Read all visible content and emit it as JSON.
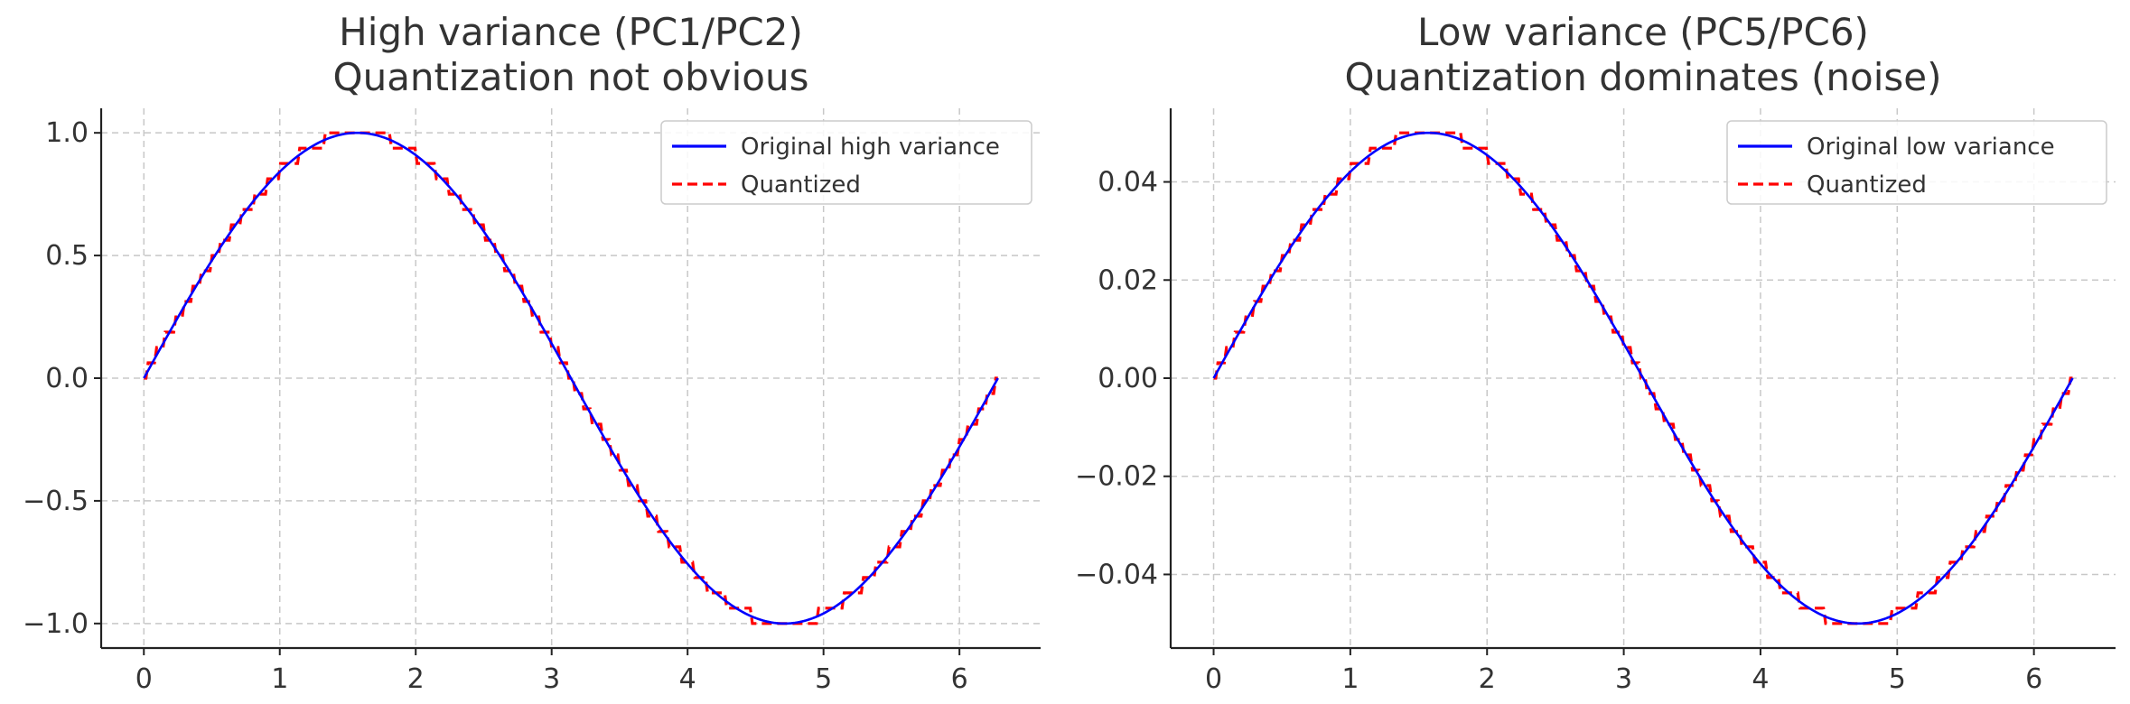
{
  "chart_data": [
    {
      "type": "line",
      "title": "High variance (PC1/PC2)",
      "subtitle": "Quantization not obvious",
      "xlabel": "",
      "ylabel": "",
      "xlim": [
        -0.314,
        6.597
      ],
      "ylim": [
        -1.1,
        1.1
      ],
      "xticks": [
        0,
        1,
        2,
        3,
        4,
        5,
        6
      ],
      "yticks": [
        -1.0,
        -0.5,
        0.0,
        0.5,
        1.0
      ],
      "xtick_labels": [
        "0",
        "1",
        "2",
        "3",
        "4",
        "5",
        "6"
      ],
      "ytick_labels": [
        "−1.0",
        "−0.5",
        "0.0",
        "0.5",
        "1.0"
      ],
      "grid": true,
      "legend_position": "top-right",
      "function": "sin(x) for x in [0, 2π]",
      "x_range": [
        0,
        6.2832
      ],
      "amplitude": 1.0,
      "quantization_step": 0.0625,
      "series": [
        {
          "name": "Original high variance",
          "color": "#0000ff",
          "style": "solid"
        },
        {
          "name": "Quantized",
          "color": "#ff0000",
          "style": "dashed"
        }
      ]
    },
    {
      "type": "line",
      "title": "Low variance (PC5/PC6)",
      "subtitle": "Quantization dominates (noise)",
      "xlabel": "",
      "ylabel": "",
      "xlim": [
        -0.314,
        6.597
      ],
      "ylim": [
        -0.055,
        0.055
      ],
      "xticks": [
        0,
        1,
        2,
        3,
        4,
        5,
        6
      ],
      "yticks": [
        -0.04,
        -0.02,
        0.0,
        0.02,
        0.04
      ],
      "xtick_labels": [
        "0",
        "1",
        "2",
        "3",
        "4",
        "5",
        "6"
      ],
      "ytick_labels": [
        "−0.04",
        "−0.02",
        "0.00",
        "0.02",
        "0.04"
      ],
      "grid": true,
      "legend_position": "top-right",
      "function": "0.05·sin(x) for x in [0, 2π]",
      "x_range": [
        0,
        6.2832
      ],
      "amplitude": 0.05,
      "quantization_step": 0.003125,
      "series": [
        {
          "name": "Original low variance",
          "color": "#0000ff",
          "style": "solid"
        },
        {
          "name": "Quantized",
          "color": "#ff0000",
          "style": "dashed"
        }
      ]
    }
  ]
}
